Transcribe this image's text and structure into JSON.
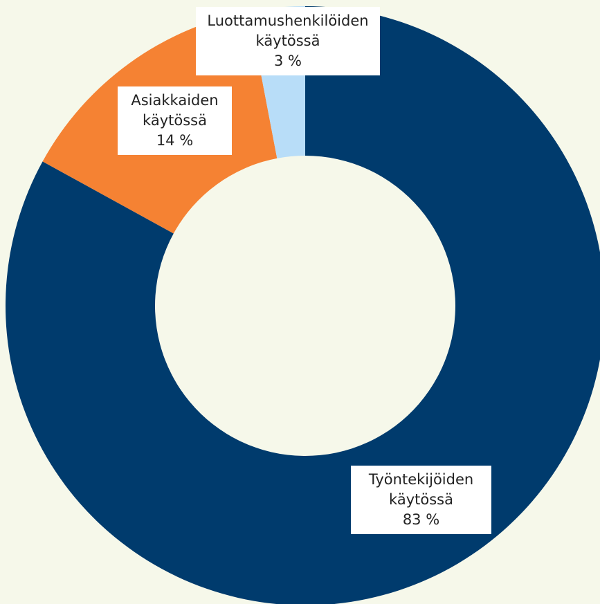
{
  "chart_data": {
    "type": "donut",
    "categories": [
      "Työntekijöiden käytössä",
      "Asiakkaiden käytössä",
      "Luottamushenkilöiden käytössä"
    ],
    "values": [
      83,
      14,
      3
    ],
    "value_labels": [
      "83 %",
      "14 %",
      "3 %"
    ],
    "colors": [
      "#003b6d",
      "#f58233",
      "#b8ddf8"
    ]
  }
}
